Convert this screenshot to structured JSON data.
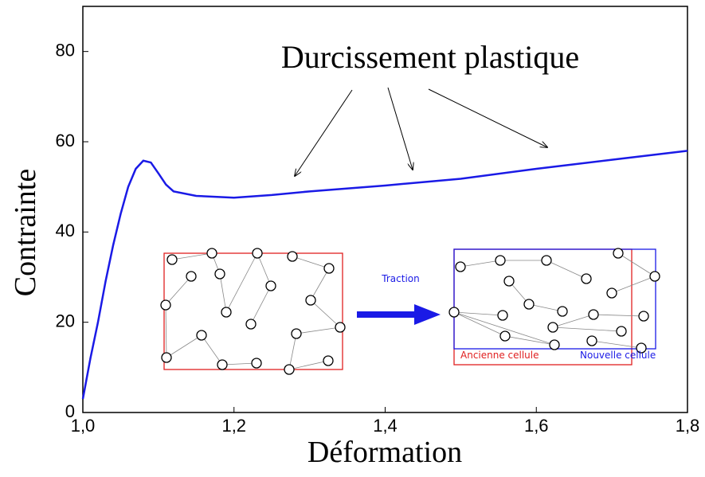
{
  "chart_data": {
    "type": "line",
    "xlabel": "Déformation",
    "ylabel": "Contrainte",
    "annotation": "Durcissement plastique",
    "inset_labels": {
      "arrow": "Traction",
      "old_cell": "Ancienne cellule",
      "new_cell": "Nouvelle cellule"
    },
    "x": [
      1.0,
      1.01,
      1.02,
      1.03,
      1.04,
      1.05,
      1.06,
      1.07,
      1.08,
      1.09,
      1.1,
      1.11,
      1.12,
      1.15,
      1.2,
      1.25,
      1.3,
      1.4,
      1.5,
      1.6,
      1.7,
      1.8
    ],
    "series": [
      {
        "color": "#1a1ae6",
        "values": [
          3,
          12,
          20,
          29,
          37,
          44,
          50,
          54,
          55.8,
          55.4,
          53,
          50.5,
          49,
          48,
          47.6,
          48.2,
          49,
          50.3,
          51.8,
          54,
          56,
          58
        ]
      }
    ],
    "xlim": [
      1.0,
      1.8
    ],
    "ylim": [
      0,
      90
    ],
    "xticks": [
      {
        "value": 1.0,
        "label": "1,0"
      },
      {
        "value": 1.2,
        "label": "1,2"
      },
      {
        "value": 1.4,
        "label": "1,4"
      },
      {
        "value": 1.6,
        "label": "1,6"
      },
      {
        "value": 1.8,
        "label": "1,8"
      }
    ],
    "yticks": [
      0,
      20,
      40,
      60,
      80
    ]
  }
}
